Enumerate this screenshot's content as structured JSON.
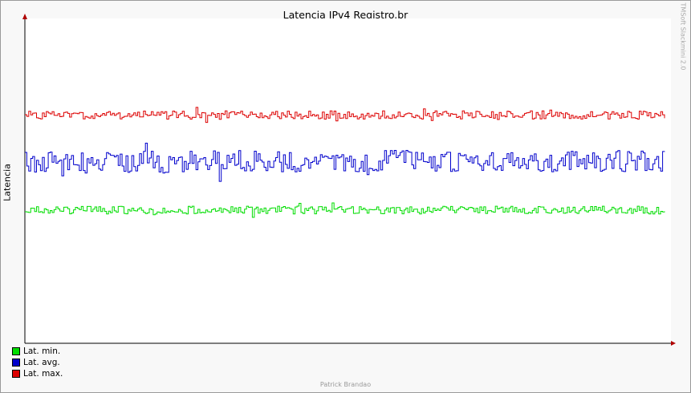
{
  "chart_data": {
    "type": "line",
    "title": "Latencia IPv4 Registro.br",
    "ylabel": "Latencia",
    "xlabel": "",
    "grid": false,
    "legend_placement": "bottom-left",
    "series": [
      {
        "name": "Lat. min.",
        "color": "#00dd00",
        "base": 0.59,
        "spread": 0.012
      },
      {
        "name": "Lat. avg.",
        "color": "#0000cc",
        "base": 0.44,
        "spread": 0.034
      },
      {
        "name": "Lat. max.",
        "color": "#dd0000",
        "base": 0.297,
        "spread": 0.013
      }
    ]
  },
  "watermark": "TMSoft Slackmini 2.0",
  "footer": "Patrick Brandao"
}
